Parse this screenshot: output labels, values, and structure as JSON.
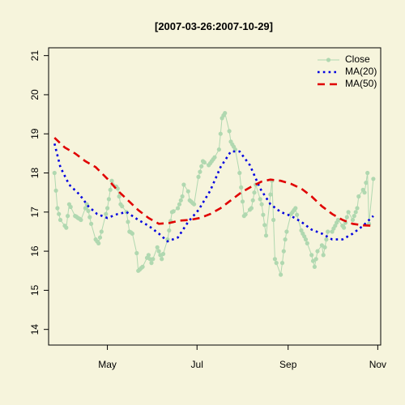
{
  "chart_data": {
    "type": "line",
    "title": "[2007-03-26:2007-10-29]",
    "xlabel": "",
    "ylabel": "",
    "x_start": "2007-03-26",
    "x_end": "2007-10-29",
    "xlim": [
      "2007-03-22",
      "2007-11-03"
    ],
    "ylim": [
      13.6,
      21.2
    ],
    "grid": false,
    "legend_position": "top-right",
    "y_ticks": [
      14,
      15,
      16,
      17,
      18,
      19,
      20,
      21
    ],
    "x_ticks": [
      {
        "date": "2007-05-01",
        "label": "May"
      },
      {
        "date": "2007-07-01",
        "label": "Jul"
      },
      {
        "date": "2007-09-01",
        "label": "Sep"
      },
      {
        "date": "2007-11-01",
        "label": "Nov"
      }
    ],
    "close_anchors": [
      [
        "2007-03-26",
        18.0
      ],
      [
        "2007-03-28",
        17.1
      ],
      [
        "2007-03-30",
        16.8
      ],
      [
        "2007-04-03",
        16.6
      ],
      [
        "2007-04-05",
        17.2
      ],
      [
        "2007-04-09",
        16.9
      ],
      [
        "2007-04-13",
        16.8
      ],
      [
        "2007-04-17",
        17.2
      ],
      [
        "2007-04-20",
        16.7
      ],
      [
        "2007-04-23",
        16.3
      ],
      [
        "2007-04-25",
        16.2
      ],
      [
        "2007-04-27",
        16.5
      ],
      [
        "2007-05-01",
        17.1
      ],
      [
        "2007-05-04",
        17.8
      ],
      [
        "2007-05-08",
        17.6
      ],
      [
        "2007-05-10",
        17.2
      ],
      [
        "2007-05-14",
        17.0
      ],
      [
        "2007-05-16",
        16.5
      ],
      [
        "2007-05-20",
        16.4
      ],
      [
        "2007-05-22",
        15.5
      ],
      [
        "2007-05-25",
        15.6
      ],
      [
        "2007-05-29",
        15.9
      ],
      [
        "2007-05-31",
        15.7
      ],
      [
        "2007-06-04",
        16.1
      ],
      [
        "2007-06-07",
        15.8
      ],
      [
        "2007-06-11",
        16.3
      ],
      [
        "2007-06-14",
        17.0
      ],
      [
        "2007-06-18",
        17.1
      ],
      [
        "2007-06-21",
        17.4
      ],
      [
        "2007-06-23",
        18.0
      ],
      [
        "2007-06-26",
        17.3
      ],
      [
        "2007-06-29",
        17.2
      ],
      [
        "2007-07-02",
        17.9
      ],
      [
        "2007-07-05",
        18.3
      ],
      [
        "2007-07-09",
        18.2
      ],
      [
        "2007-07-13",
        18.4
      ],
      [
        "2007-07-16",
        18.6
      ],
      [
        "2007-07-18",
        19.4
      ],
      [
        "2007-07-21",
        19.6
      ],
      [
        "2007-07-24",
        18.8
      ],
      [
        "2007-07-27",
        18.6
      ],
      [
        "2007-07-30",
        18.0
      ],
      [
        "2007-08-02",
        16.9
      ],
      [
        "2007-08-07",
        17.1
      ],
      [
        "2007-08-10",
        17.7
      ],
      [
        "2007-08-14",
        17.2
      ],
      [
        "2007-08-17",
        16.4
      ],
      [
        "2007-08-21",
        17.8
      ],
      [
        "2007-08-23",
        15.8
      ],
      [
        "2007-08-27",
        15.4
      ],
      [
        "2007-08-30",
        16.3
      ],
      [
        "2007-09-02",
        16.9
      ],
      [
        "2007-09-06",
        17.1
      ],
      [
        "2007-09-09",
        16.6
      ],
      [
        "2007-09-13",
        16.3
      ],
      [
        "2007-09-17",
        15.9
      ],
      [
        "2007-09-19",
        15.6
      ],
      [
        "2007-09-23",
        16.4
      ],
      [
        "2007-09-25",
        15.9
      ],
      [
        "2007-09-28",
        16.5
      ],
      [
        "2007-10-01",
        16.5
      ],
      [
        "2007-10-05",
        16.8
      ],
      [
        "2007-10-09",
        16.6
      ],
      [
        "2007-10-12",
        17.0
      ],
      [
        "2007-10-15",
        16.8
      ],
      [
        "2007-10-18",
        17.1
      ],
      [
        "2007-10-20",
        17.7
      ],
      [
        "2007-10-23",
        17.5
      ],
      [
        "2007-10-25",
        18.0
      ],
      [
        "2007-10-26",
        16.7
      ],
      [
        "2007-10-29",
        17.85
      ]
    ],
    "series": [
      {
        "name": "Close",
        "color": "#b0d8b0",
        "style": "line-with-points",
        "x": [],
        "values": []
      },
      {
        "name": "MA(20)",
        "color": "#0000e0",
        "style": "dotted",
        "x": [
          "2007-03-26",
          "2007-03-30",
          "2007-04-05",
          "2007-04-12",
          "2007-04-18",
          "2007-04-24",
          "2007-05-01",
          "2007-05-08",
          "2007-05-14",
          "2007-05-22",
          "2007-05-29",
          "2007-06-05",
          "2007-06-11",
          "2007-06-18",
          "2007-06-25",
          "2007-07-02",
          "2007-07-10",
          "2007-07-17",
          "2007-07-24",
          "2007-07-30",
          "2007-08-06",
          "2007-08-13",
          "2007-08-20",
          "2007-08-27",
          "2007-09-03",
          "2007-09-10",
          "2007-09-17",
          "2007-09-24",
          "2007-10-01",
          "2007-10-08",
          "2007-10-15",
          "2007-10-22",
          "2007-10-29"
        ],
        "values": [
          18.75,
          18.15,
          17.7,
          17.45,
          17.15,
          16.95,
          16.85,
          16.95,
          17.0,
          16.8,
          16.65,
          16.45,
          16.25,
          16.35,
          16.75,
          17.05,
          17.55,
          18.15,
          18.55,
          18.55,
          18.2,
          17.6,
          17.2,
          17.0,
          16.9,
          16.75,
          16.55,
          16.45,
          16.3,
          16.3,
          16.45,
          16.65,
          16.9
        ]
      },
      {
        "name": "MA(50)",
        "color": "#e00000",
        "style": "dashed",
        "x": [
          "2007-03-26",
          "2007-04-02",
          "2007-04-09",
          "2007-04-16",
          "2007-04-23",
          "2007-05-01",
          "2007-05-08",
          "2007-05-15",
          "2007-05-22",
          "2007-05-29",
          "2007-06-05",
          "2007-06-12",
          "2007-06-19",
          "2007-06-26",
          "2007-07-03",
          "2007-07-10",
          "2007-07-17",
          "2007-07-24",
          "2007-07-31",
          "2007-08-07",
          "2007-08-14",
          "2007-08-20",
          "2007-08-27",
          "2007-09-03",
          "2007-09-10",
          "2007-09-17",
          "2007-09-24",
          "2007-10-01",
          "2007-10-08",
          "2007-10-15",
          "2007-10-22",
          "2007-10-29"
        ],
        "values": [
          18.9,
          18.65,
          18.5,
          18.3,
          18.15,
          17.85,
          17.55,
          17.3,
          17.05,
          16.85,
          16.7,
          16.72,
          16.78,
          16.8,
          16.85,
          16.95,
          17.1,
          17.3,
          17.5,
          17.65,
          17.78,
          17.83,
          17.8,
          17.72,
          17.6,
          17.4,
          17.15,
          16.95,
          16.8,
          16.7,
          16.66,
          16.65
        ]
      }
    ]
  }
}
